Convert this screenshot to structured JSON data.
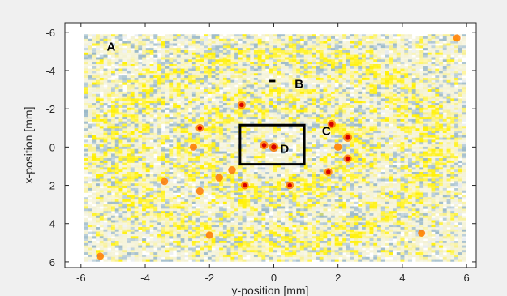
{
  "chart_data": {
    "type": "heatmap",
    "title": "",
    "xlabel": "y-position [mm]",
    "ylabel": "x-position [mm]",
    "xlim": [
      -6.5,
      6.3
    ],
    "ylim": [
      -6.5,
      6.3
    ],
    "y_axis_reversed": true,
    "x_ticks": [
      "-6",
      "-4",
      "-2",
      "0",
      "2",
      "4",
      "6"
    ],
    "y_ticks": [
      "-6",
      "-4",
      "-2",
      "0",
      "2",
      "4",
      "6"
    ],
    "grid": false,
    "colors": {
      "figure_bg": "#f0f0f0",
      "axes_bg": "#ffffff",
      "low": "#f3f1d2",
      "mid": "#fff000",
      "cool": "#9bb9c8",
      "hot": "#ff7a00",
      "peak": "#d60000"
    },
    "annotations": [
      {
        "label": "A",
        "x": -5.2,
        "y": -5.25
      },
      {
        "label": "B",
        "x": 0.65,
        "y": -3.3
      },
      {
        "label": "C",
        "x": 1.5,
        "y": -0.85
      },
      {
        "label": "D",
        "x": 0.2,
        "y": 0.1
      }
    ],
    "markers": [
      {
        "name": "B",
        "shape": "filled-square",
        "x": -0.05,
        "y": -3.45,
        "size": 0.2
      },
      {
        "name": "D",
        "shape": "rectangle",
        "x0": -1.05,
        "x1": 0.95,
        "y0": -1.15,
        "y1": 0.9
      }
    ],
    "pattern": {
      "spot_spacing_mm": 1.0,
      "ring_radii_mm": [
        2.4,
        4.9
      ],
      "hot_spots": [
        {
          "x": 0.0,
          "y": 0.0,
          "level": 1.0
        },
        {
          "x": -0.3,
          "y": -0.1,
          "level": 0.8
        },
        {
          "x": 2.3,
          "y": -0.5,
          "level": 0.9
        },
        {
          "x": 2.3,
          "y": 0.6,
          "level": 0.8
        },
        {
          "x": -2.5,
          "y": 0.0,
          "level": 0.55
        },
        {
          "x": -2.3,
          "y": -1.0,
          "level": 0.7
        },
        {
          "x": -1.0,
          "y": -2.2,
          "level": 0.75
        },
        {
          "x": 1.8,
          "y": -1.2,
          "level": 0.8
        },
        {
          "x": 1.7,
          "y": 1.3,
          "level": 0.7
        },
        {
          "x": -0.9,
          "y": 2.0,
          "level": 0.7
        },
        {
          "x": 0.5,
          "y": 2.0,
          "level": 0.7
        },
        {
          "x": -1.7,
          "y": 1.6,
          "level": 0.6
        },
        {
          "x": 2.0,
          "y": 0.0,
          "level": 0.6
        },
        {
          "x": -1.3,
          "y": 1.2,
          "level": 0.6
        },
        {
          "x": -2.3,
          "y": 2.3,
          "level": 0.55
        },
        {
          "x": -2.0,
          "y": 4.6,
          "level": 0.55
        },
        {
          "x": 4.6,
          "y": 4.5,
          "level": 0.5
        },
        {
          "x": 5.7,
          "y": -5.7,
          "level": 0.5
        },
        {
          "x": -5.4,
          "y": 5.7,
          "level": 0.5
        },
        {
          "x": -3.4,
          "y": 1.8,
          "level": 0.5
        }
      ]
    }
  }
}
